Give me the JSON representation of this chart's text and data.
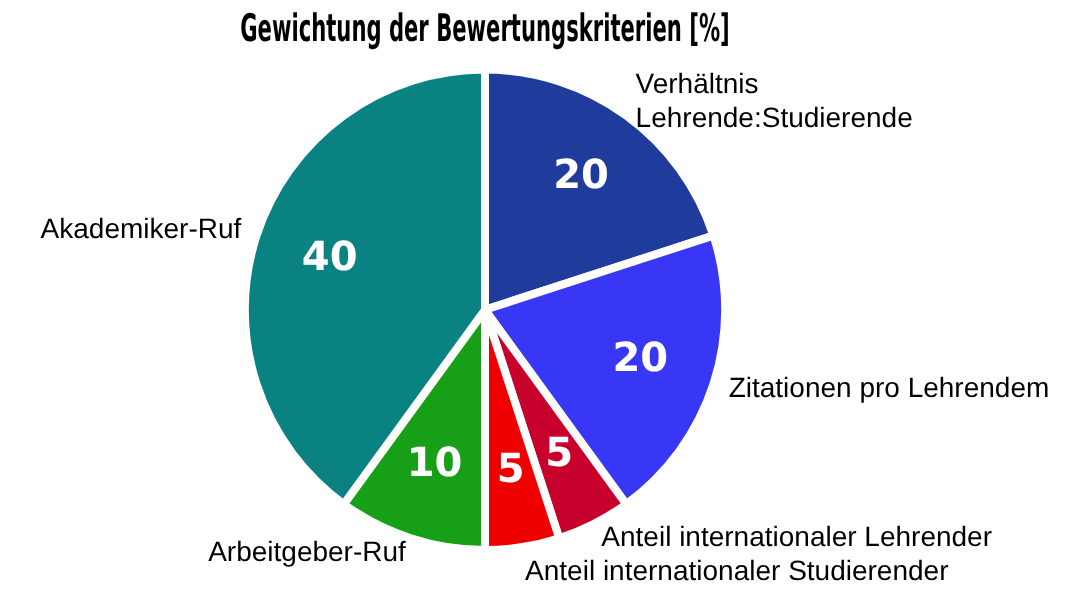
{
  "chart_data": {
    "type": "pie",
    "title": "Gewichtung der Bewertungskriterien [%]",
    "categories": [
      "Verhältnis Lehrende:Studierende",
      "Zitationen pro Lehrendem",
      "Anteil internationaler Lehrender",
      "Anteil internationaler Studierender",
      "Arbeitgeber-Ruf",
      "Akademiker-Ruf"
    ],
    "values": [
      20,
      20,
      5,
      5,
      10,
      40
    ],
    "colors": [
      "#1f3c9c",
      "#3737f5",
      "#c8002c",
      "#ee0000",
      "#17a017",
      "#0a8282"
    ],
    "data_labels": true,
    "legend": false
  }
}
